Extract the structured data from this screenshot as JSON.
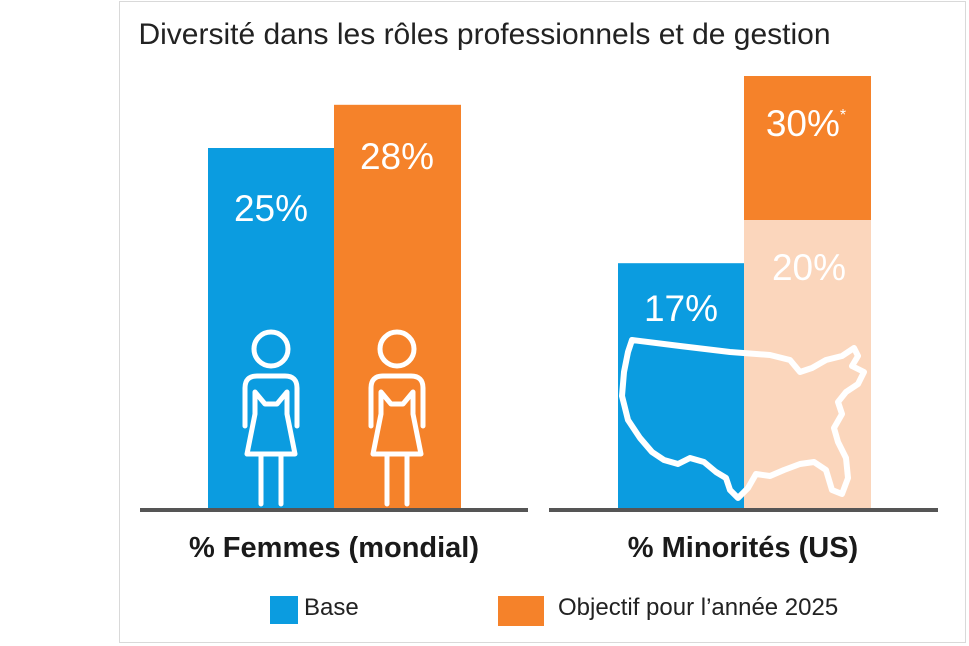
{
  "title": "Diversité dans les rôles professionnels et de gestion",
  "colors": {
    "base": "#0b9ce0",
    "target": "#f5822a",
    "target_light": "#fbd6bc",
    "target_light_text": "#f5822a",
    "axis": "#555555"
  },
  "chart_data": [
    {
      "type": "bar",
      "category": "% Femmes (mondial)",
      "icon": "woman-icon",
      "series": [
        {
          "name": "Base",
          "value": 25,
          "label": "25%"
        },
        {
          "name": "Objectif pour l’année 2025",
          "value": 28,
          "label": "28%"
        }
      ]
    },
    {
      "type": "bar",
      "category": "% Minorités (US)",
      "icon": "us-map-icon",
      "series": [
        {
          "name": "Base",
          "value": 17,
          "label": "17%"
        },
        {
          "name": "Objectif pour l’année 2025",
          "value": 30,
          "label": "30%",
          "footnote_mark": "*",
          "inner_value": 20,
          "inner_label": "20%"
        }
      ]
    }
  ],
  "legend": [
    {
      "label": "Base",
      "color": "#0b9ce0"
    },
    {
      "label": "Objectif pour l’année 2025",
      "color": "#f5822a"
    }
  ]
}
